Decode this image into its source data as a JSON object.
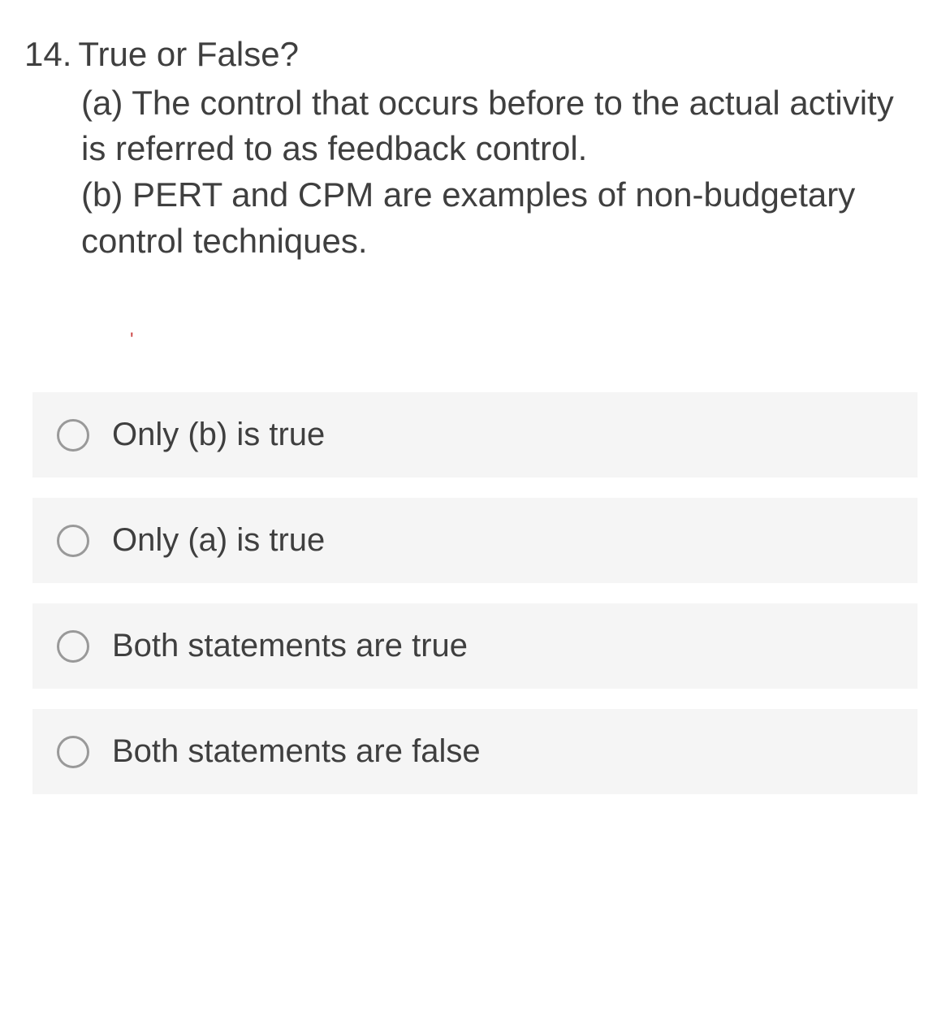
{
  "question": {
    "number": "14.",
    "title": "True or False?",
    "statements": [
      "(a) The control that occurs before to the actual activity is referred to as feedback control.",
      "(b) PERT and CPM are examples of non-budgetary control techniques."
    ]
  },
  "mark": "'",
  "options": [
    "Only (b) is true",
    "Only (a) is true",
    "Both statements are true",
    "Both statements are false"
  ],
  "colors": {
    "text": "#3f3f3f",
    "option_bg": "#f5f5f5",
    "radio_border": "#999999",
    "mark": "#cc4444"
  },
  "typography": {
    "question_fontsize": 42,
    "option_fontsize": 40
  }
}
